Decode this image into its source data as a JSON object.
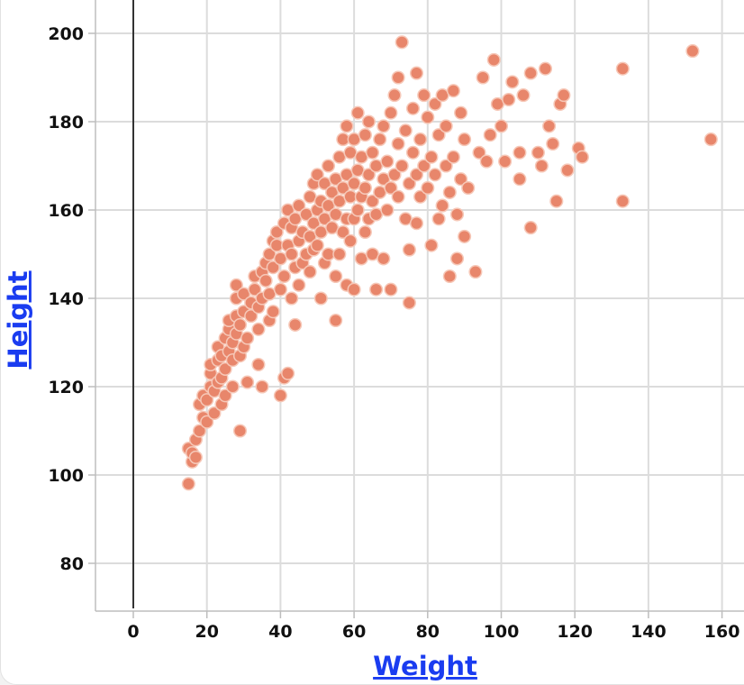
{
  "chart_data": {
    "type": "scatter",
    "xlabel": "Weight",
    "ylabel": "Height",
    "xlim": [
      -10,
      165
    ],
    "ylim": [
      70,
      207
    ],
    "xticks": [
      0,
      20,
      40,
      60,
      80,
      100,
      120,
      140,
      160
    ],
    "yticks": [
      80,
      100,
      120,
      140,
      160,
      180,
      200
    ],
    "grid": true,
    "colors": {
      "point": "#e8866b",
      "point_stroke": "#f6c8b8",
      "axis_title": "#1a3cf0"
    },
    "series": [
      {
        "points": [
          [
            15,
            98
          ],
          [
            15,
            106
          ],
          [
            16,
            103
          ],
          [
            16,
            105
          ],
          [
            17,
            104
          ],
          [
            17,
            108
          ],
          [
            18,
            110
          ],
          [
            18,
            116
          ],
          [
            19,
            118
          ],
          [
            19,
            113
          ],
          [
            20,
            112
          ],
          [
            20,
            117
          ],
          [
            21,
            120
          ],
          [
            21,
            123
          ],
          [
            21,
            125
          ],
          [
            22,
            114
          ],
          [
            22,
            119
          ],
          [
            23,
            121
          ],
          [
            23,
            126
          ],
          [
            23,
            129
          ],
          [
            24,
            116
          ],
          [
            24,
            122
          ],
          [
            24,
            127
          ],
          [
            25,
            118
          ],
          [
            25,
            124
          ],
          [
            25,
            131
          ],
          [
            26,
            128
          ],
          [
            26,
            133
          ],
          [
            26,
            135
          ],
          [
            27,
            120
          ],
          [
            27,
            126
          ],
          [
            27,
            130
          ],
          [
            28,
            132
          ],
          [
            28,
            136
          ],
          [
            28,
            140
          ],
          [
            28,
            143
          ],
          [
            29,
            110
          ],
          [
            29,
            127
          ],
          [
            29,
            134
          ],
          [
            30,
            129
          ],
          [
            30,
            137
          ],
          [
            30,
            141
          ],
          [
            31,
            121
          ],
          [
            31,
            131
          ],
          [
            32,
            136
          ],
          [
            32,
            139
          ],
          [
            33,
            142
          ],
          [
            33,
            145
          ],
          [
            34,
            125
          ],
          [
            34,
            133
          ],
          [
            34,
            138
          ],
          [
            35,
            120
          ],
          [
            35,
            140
          ],
          [
            35,
            146
          ],
          [
            36,
            144
          ],
          [
            36,
            148
          ],
          [
            37,
            135
          ],
          [
            37,
            141
          ],
          [
            37,
            150
          ],
          [
            38,
            137
          ],
          [
            38,
            147
          ],
          [
            38,
            153
          ],
          [
            39,
            152
          ],
          [
            39,
            155
          ],
          [
            40,
            118
          ],
          [
            40,
            142
          ],
          [
            40,
            149
          ],
          [
            41,
            122
          ],
          [
            41,
            145
          ],
          [
            41,
            157
          ],
          [
            42,
            123
          ],
          [
            42,
            152
          ],
          [
            42,
            160
          ],
          [
            43,
            140
          ],
          [
            43,
            150
          ],
          [
            43,
            156
          ],
          [
            44,
            134
          ],
          [
            44,
            147
          ],
          [
            44,
            158
          ],
          [
            45,
            143
          ],
          [
            45,
            153
          ],
          [
            45,
            161
          ],
          [
            46,
            148
          ],
          [
            46,
            155
          ],
          [
            47,
            150
          ],
          [
            47,
            159
          ],
          [
            48,
            146
          ],
          [
            48,
            154
          ],
          [
            48,
            163
          ],
          [
            49,
            151
          ],
          [
            49,
            157
          ],
          [
            49,
            166
          ],
          [
            50,
            152
          ],
          [
            50,
            160
          ],
          [
            50,
            168
          ],
          [
            51,
            140
          ],
          [
            51,
            155
          ],
          [
            51,
            162
          ],
          [
            52,
            148
          ],
          [
            52,
            158
          ],
          [
            52,
            166
          ],
          [
            53,
            150
          ],
          [
            53,
            161
          ],
          [
            53,
            170
          ],
          [
            54,
            156
          ],
          [
            54,
            164
          ],
          [
            55,
            135
          ],
          [
            55,
            145
          ],
          [
            55,
            159
          ],
          [
            55,
            167
          ],
          [
            56,
            150
          ],
          [
            56,
            162
          ],
          [
            56,
            172
          ],
          [
            57,
            155
          ],
          [
            57,
            165
          ],
          [
            57,
            176
          ],
          [
            58,
            143
          ],
          [
            58,
            158
          ],
          [
            58,
            168
          ],
          [
            58,
            179
          ],
          [
            59,
            153
          ],
          [
            59,
            163
          ],
          [
            59,
            173
          ],
          [
            60,
            142
          ],
          [
            60,
            158
          ],
          [
            60,
            166
          ],
          [
            60,
            176
          ],
          [
            61,
            160
          ],
          [
            61,
            169
          ],
          [
            61,
            182
          ],
          [
            62,
            149
          ],
          [
            62,
            163
          ],
          [
            62,
            172
          ],
          [
            63,
            155
          ],
          [
            63,
            165
          ],
          [
            63,
            177
          ],
          [
            64,
            158
          ],
          [
            64,
            168
          ],
          [
            64,
            180
          ],
          [
            65,
            150
          ],
          [
            65,
            162
          ],
          [
            65,
            173
          ],
          [
            66,
            142
          ],
          [
            66,
            159
          ],
          [
            66,
            170
          ],
          [
            67,
            164
          ],
          [
            67,
            176
          ],
          [
            68,
            149
          ],
          [
            68,
            167
          ],
          [
            68,
            179
          ],
          [
            69,
            160
          ],
          [
            69,
            171
          ],
          [
            70,
            142
          ],
          [
            70,
            165
          ],
          [
            70,
            182
          ],
          [
            71,
            168
          ],
          [
            71,
            186
          ],
          [
            72,
            163
          ],
          [
            72,
            175
          ],
          [
            72,
            190
          ],
          [
            73,
            198
          ],
          [
            73,
            170
          ],
          [
            74,
            158
          ],
          [
            74,
            178
          ],
          [
            75,
            139
          ],
          [
            75,
            151
          ],
          [
            75,
            166
          ],
          [
            76,
            173
          ],
          [
            76,
            183
          ],
          [
            77,
            157
          ],
          [
            77,
            168
          ],
          [
            77,
            191
          ],
          [
            78,
            163
          ],
          [
            78,
            176
          ],
          [
            79,
            170
          ],
          [
            79,
            186
          ],
          [
            80,
            165
          ],
          [
            80,
            181
          ],
          [
            81,
            152
          ],
          [
            81,
            172
          ],
          [
            82,
            168
          ],
          [
            82,
            184
          ],
          [
            83,
            158
          ],
          [
            83,
            177
          ],
          [
            84,
            161
          ],
          [
            84,
            186
          ],
          [
            85,
            170
          ],
          [
            85,
            179
          ],
          [
            86,
            145
          ],
          [
            86,
            164
          ],
          [
            87,
            187
          ],
          [
            87,
            172
          ],
          [
            88,
            149
          ],
          [
            88,
            159
          ],
          [
            89,
            167
          ],
          [
            89,
            182
          ],
          [
            90,
            154
          ],
          [
            90,
            176
          ],
          [
            91,
            165
          ],
          [
            93,
            146
          ],
          [
            94,
            173
          ],
          [
            95,
            190
          ],
          [
            96,
            171
          ],
          [
            97,
            177
          ],
          [
            98,
            194
          ],
          [
            99,
            184
          ],
          [
            100,
            179
          ],
          [
            101,
            171
          ],
          [
            102,
            185
          ],
          [
            103,
            189
          ],
          [
            105,
            173
          ],
          [
            105,
            167
          ],
          [
            106,
            186
          ],
          [
            108,
            156
          ],
          [
            108,
            191
          ],
          [
            110,
            173
          ],
          [
            111,
            170
          ],
          [
            112,
            192
          ],
          [
            113,
            179
          ],
          [
            114,
            175
          ],
          [
            115,
            162
          ],
          [
            116,
            184
          ],
          [
            117,
            186
          ],
          [
            118,
            169
          ],
          [
            121,
            174
          ],
          [
            122,
            172
          ],
          [
            133,
            162
          ],
          [
            133,
            192
          ],
          [
            152,
            196
          ],
          [
            157,
            176
          ]
        ]
      }
    ]
  }
}
